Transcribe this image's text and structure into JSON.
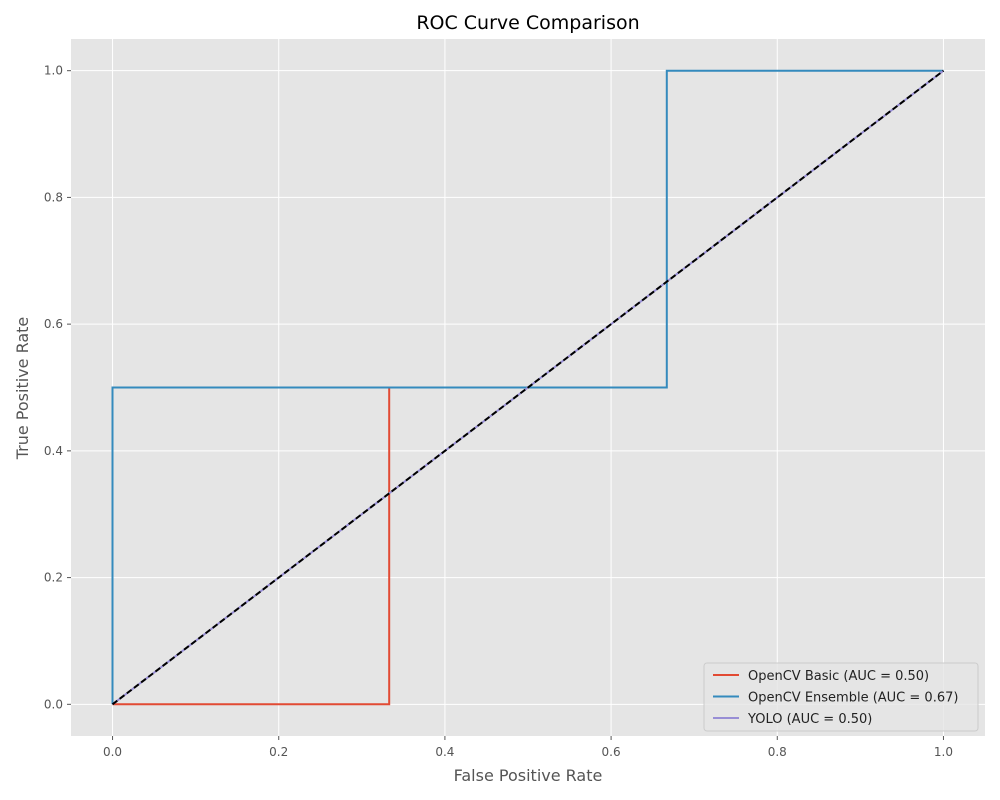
{
  "chart_data": {
    "type": "line",
    "title": "ROC Curve Comparison",
    "xlabel": "False Positive Rate",
    "ylabel": "True Positive Rate",
    "xlim": [
      -0.05,
      1.05
    ],
    "ylim": [
      -0.05,
      1.05
    ],
    "xticks": [
      0.0,
      0.2,
      0.4,
      0.6,
      0.8,
      1.0
    ],
    "yticks": [
      0.0,
      0.2,
      0.4,
      0.6,
      0.8,
      1.0
    ],
    "xtick_labels": [
      "0.0",
      "0.2",
      "0.4",
      "0.6",
      "0.8",
      "1.0"
    ],
    "ytick_labels": [
      "0.0",
      "0.2",
      "0.4",
      "0.6",
      "0.8",
      "1.0"
    ],
    "grid": true,
    "legend_position": "bottom-right",
    "series": [
      {
        "name": "OpenCV Basic (AUC = 0.50)",
        "color": "#E24A33",
        "x": [
          0.0,
          0.333,
          0.333
        ],
        "y": [
          0.0,
          0.0,
          0.5
        ]
      },
      {
        "name": "OpenCV Ensemble (AUC = 0.67)",
        "color": "#348ABD",
        "x": [
          0.0,
          0.0,
          0.667,
          0.667,
          1.0
        ],
        "y": [
          0.0,
          0.5,
          0.5,
          1.0,
          1.0
        ]
      },
      {
        "name": "YOLO (AUC = 0.50)",
        "color": "#988ED5",
        "x": [
          0.0,
          1.0
        ],
        "y": [
          0.0,
          1.0
        ]
      }
    ],
    "reference_line": {
      "color": "#000000",
      "dashed": true,
      "x": [
        0.0,
        1.0
      ],
      "y": [
        0.0,
        1.0
      ]
    },
    "colors": {
      "plot_background": "#E5E5E5",
      "grid": "#FFFFFF",
      "tick_text": "#555555",
      "label_text": "#555555",
      "title_text": "#000000"
    }
  }
}
